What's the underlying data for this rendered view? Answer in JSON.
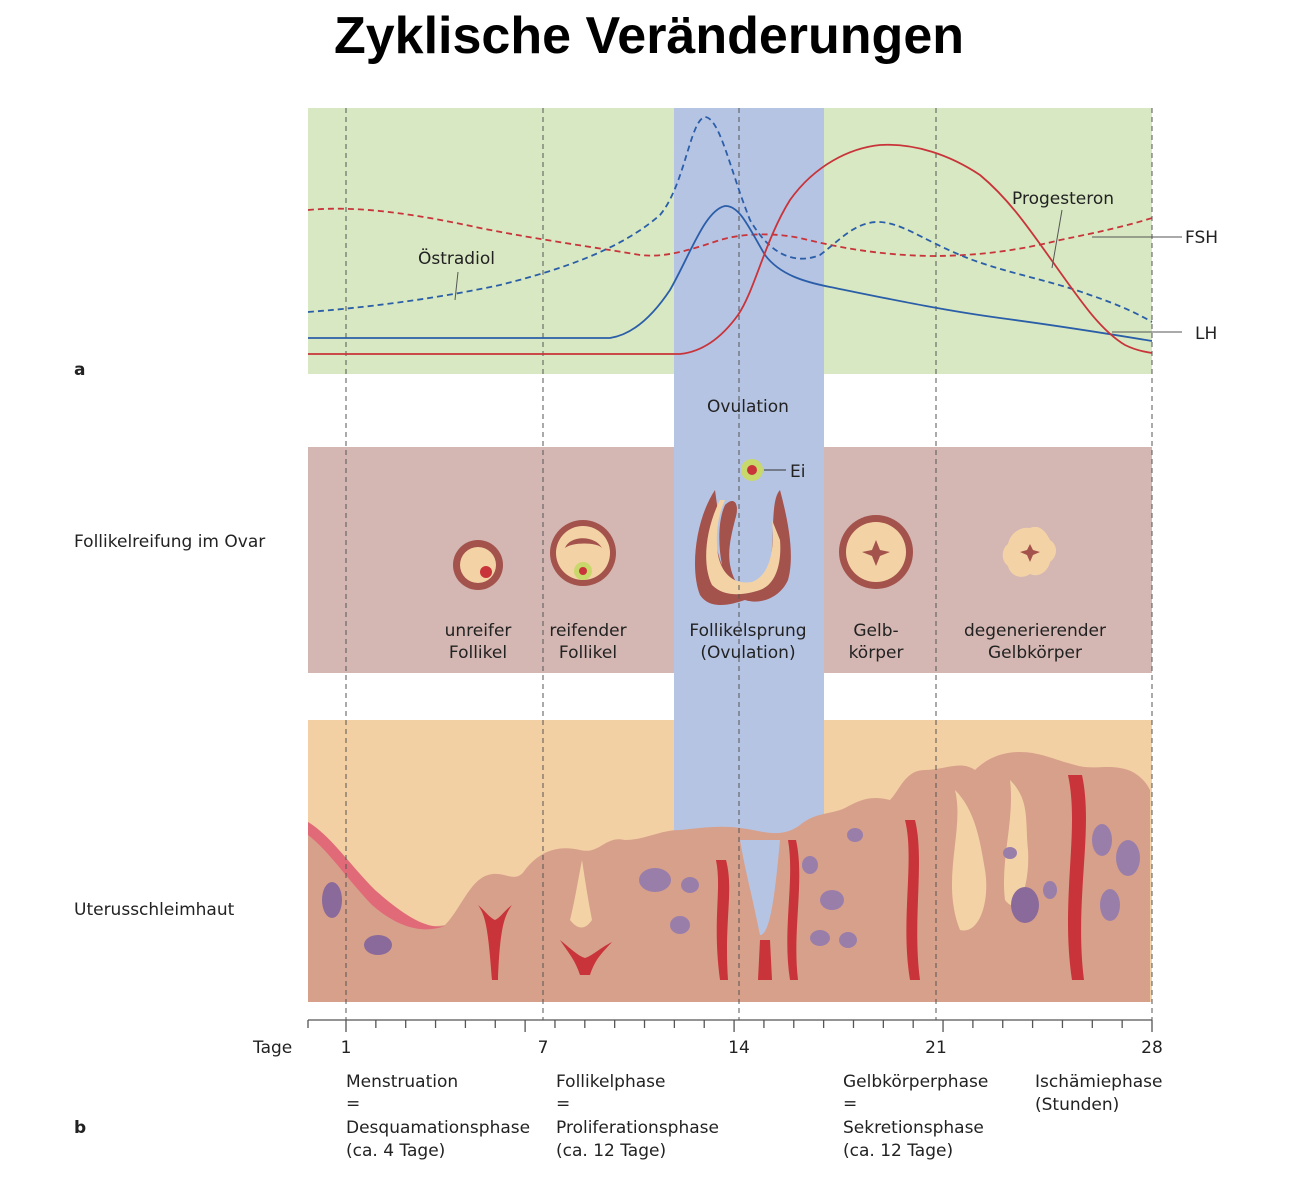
{
  "title": "Zyklische Veränderungen",
  "panel_labels": {
    "a": "a",
    "b": "b"
  },
  "row_labels": {
    "ovar": "Follikelreifung im Ovar",
    "uterus": "Uterusschleimhaut",
    "tage": "Tage"
  },
  "hormones": {
    "oestradiol": "Östradiol",
    "progesteron": "Progesteron",
    "fsh": "FSH",
    "lh": "LH"
  },
  "ovulation": "Ovulation",
  "ei": "Ei",
  "follicles": [
    {
      "line1": "unreifer",
      "line2": "Follikel"
    },
    {
      "line1": "reifender",
      "line2": "Follikel"
    },
    {
      "line1": "Follikelsprung",
      "line2": "(Ovulation)"
    },
    {
      "line1": "Gelb-",
      "line2": "körper"
    },
    {
      "line1": "degenerierender",
      "line2": "Gelbkörper"
    }
  ],
  "day_ticks": [
    "1",
    "7",
    "14",
    "21",
    "28"
  ],
  "phases": [
    {
      "l1": "Menstruation",
      "l2": "=",
      "l3": "Desquamationsphase",
      "l4": "(ca. 4 Tage)"
    },
    {
      "l1": "Follikelphase",
      "l2": "=",
      "l3": "Proliferationsphase",
      "l4": "(ca. 12 Tage)"
    },
    {
      "l1": "Gelbkörperphase",
      "l2": "=",
      "l3": "Sekretionsphase",
      "l4": "(ca. 12 Tage)"
    },
    {
      "l1": "Ischämiephase",
      "l2": "(Stunden)"
    }
  ],
  "colors": {
    "hormone_bg": "#d8e8c2",
    "ovary_bg": "#d4b6b2",
    "uterus_bg": "#f3cfa4",
    "ovulation_band": "#b6c4e4",
    "red_curve": "#c8343a",
    "blue_curve": "#2a5ea8"
  }
}
